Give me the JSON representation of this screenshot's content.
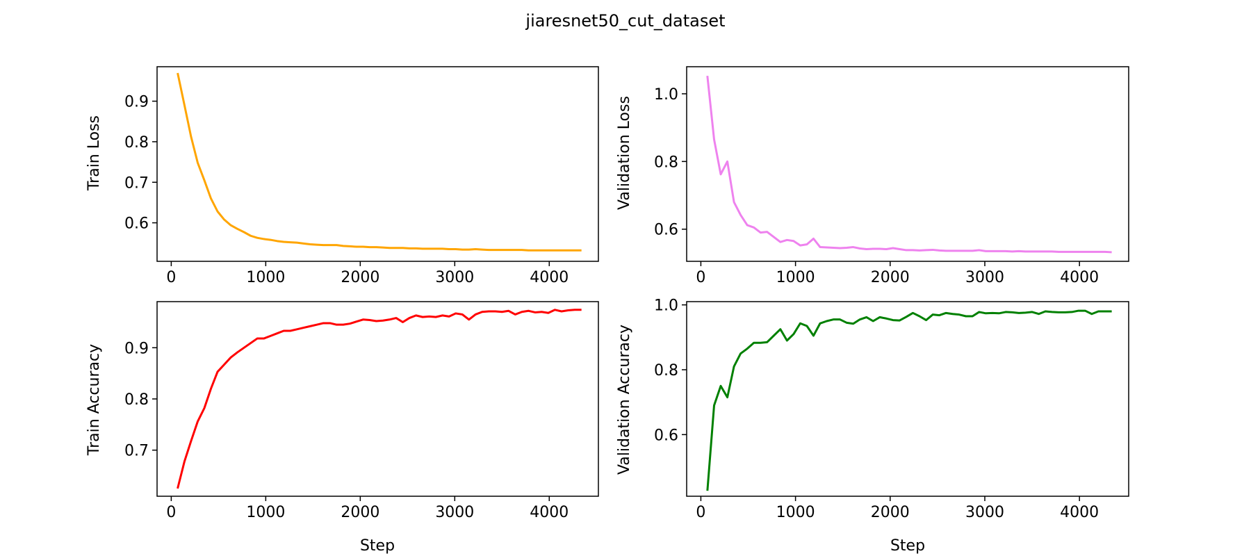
{
  "figure": {
    "title": "jiaresnet50_cut_dataset"
  },
  "chart_data": [
    {
      "type": "line",
      "id": "train-loss",
      "title": "",
      "xlabel": "",
      "ylabel": "Train Loss",
      "xlim": [
        -150,
        4520
      ],
      "ylim": [
        0.505,
        0.985
      ],
      "xticks": [
        0,
        1000,
        2000,
        3000,
        4000
      ],
      "yticks": [
        0.6,
        0.7,
        0.8,
        0.9
      ],
      "color": "#ffa500",
      "series": [
        {
          "x": [
            70,
            140,
            210,
            280,
            350,
            420,
            490,
            560,
            630,
            700,
            770,
            840,
            910,
            980,
            1050,
            1120,
            1190,
            1260,
            1330,
            1400,
            1470,
            1540,
            1610,
            1680,
            1750,
            1820,
            1890,
            1960,
            2030,
            2100,
            2170,
            2240,
            2310,
            2380,
            2450,
            2520,
            2590,
            2660,
            2730,
            2800,
            2870,
            2940,
            3010,
            3080,
            3150,
            3220,
            3290,
            3360,
            3430,
            3500,
            3570,
            3640,
            3710,
            3780,
            3850,
            3920,
            3990,
            4060,
            4130,
            4200,
            4270,
            4330
          ],
          "values": [
            0.967,
            0.89,
            0.812,
            0.748,
            0.705,
            0.66,
            0.628,
            0.608,
            0.594,
            0.585,
            0.577,
            0.568,
            0.563,
            0.56,
            0.558,
            0.555,
            0.553,
            0.552,
            0.551,
            0.549,
            0.547,
            0.546,
            0.545,
            0.545,
            0.545,
            0.543,
            0.542,
            0.541,
            0.541,
            0.54,
            0.54,
            0.539,
            0.538,
            0.538,
            0.538,
            0.537,
            0.537,
            0.536,
            0.536,
            0.536,
            0.536,
            0.535,
            0.535,
            0.534,
            0.534,
            0.535,
            0.534,
            0.533,
            0.533,
            0.533,
            0.533,
            0.533,
            0.533,
            0.532,
            0.532,
            0.532,
            0.532,
            0.532,
            0.532,
            0.532,
            0.532,
            0.532
          ]
        }
      ]
    },
    {
      "type": "line",
      "id": "validation-loss",
      "title": "",
      "xlabel": "",
      "ylabel": "Validation Loss",
      "xlim": [
        -150,
        4520
      ],
      "ylim": [
        0.505,
        1.08
      ],
      "xticks": [
        0,
        1000,
        2000,
        3000,
        4000
      ],
      "yticks": [
        0.6,
        0.8,
        1.0
      ],
      "color": "#ee82ee",
      "series": [
        {
          "x": [
            70,
            140,
            210,
            280,
            350,
            420,
            490,
            560,
            630,
            700,
            770,
            840,
            910,
            980,
            1050,
            1120,
            1190,
            1260,
            1330,
            1400,
            1470,
            1540,
            1610,
            1680,
            1750,
            1820,
            1890,
            1960,
            2030,
            2100,
            2170,
            2240,
            2310,
            2380,
            2450,
            2520,
            2590,
            2660,
            2730,
            2800,
            2870,
            2940,
            3010,
            3080,
            3150,
            3220,
            3290,
            3360,
            3430,
            3500,
            3570,
            3640,
            3710,
            3780,
            3850,
            3920,
            3990,
            4060,
            4130,
            4200,
            4270,
            4330
          ],
          "values": [
            1.05,
            0.865,
            0.762,
            0.8,
            0.68,
            0.642,
            0.612,
            0.605,
            0.59,
            0.592,
            0.577,
            0.562,
            0.568,
            0.565,
            0.552,
            0.555,
            0.572,
            0.547,
            0.546,
            0.545,
            0.544,
            0.545,
            0.547,
            0.543,
            0.541,
            0.542,
            0.542,
            0.541,
            0.544,
            0.541,
            0.538,
            0.538,
            0.537,
            0.538,
            0.539,
            0.537,
            0.536,
            0.536,
            0.536,
            0.536,
            0.536,
            0.538,
            0.535,
            0.535,
            0.535,
            0.535,
            0.534,
            0.535,
            0.534,
            0.534,
            0.534,
            0.534,
            0.534,
            0.533,
            0.533,
            0.533,
            0.533,
            0.533,
            0.533,
            0.533,
            0.533,
            0.532
          ]
        }
      ]
    },
    {
      "type": "line",
      "id": "train-accuracy",
      "title": "",
      "xlabel": "Step",
      "ylabel": "Train Accuracy",
      "xlim": [
        -150,
        4520
      ],
      "ylim": [
        0.61,
        0.99
      ],
      "xticks": [
        0,
        1000,
        2000,
        3000,
        4000
      ],
      "yticks": [
        0.7,
        0.8,
        0.9
      ],
      "color": "#ff0000",
      "series": [
        {
          "x": [
            70,
            140,
            210,
            280,
            350,
            420,
            490,
            560,
            630,
            700,
            770,
            840,
            910,
            980,
            1050,
            1120,
            1190,
            1260,
            1330,
            1400,
            1470,
            1540,
            1610,
            1680,
            1750,
            1820,
            1890,
            1960,
            2030,
            2100,
            2170,
            2240,
            2310,
            2380,
            2450,
            2520,
            2590,
            2660,
            2730,
            2800,
            2870,
            2940,
            3010,
            3080,
            3150,
            3220,
            3290,
            3360,
            3430,
            3500,
            3570,
            3640,
            3710,
            3780,
            3850,
            3920,
            3990,
            4060,
            4130,
            4200,
            4270,
            4330
          ],
          "values": [
            0.627,
            0.678,
            0.718,
            0.756,
            0.782,
            0.82,
            0.853,
            0.867,
            0.881,
            0.891,
            0.9,
            0.909,
            0.918,
            0.918,
            0.923,
            0.928,
            0.933,
            0.933,
            0.936,
            0.939,
            0.942,
            0.945,
            0.948,
            0.948,
            0.945,
            0.945,
            0.947,
            0.951,
            0.955,
            0.954,
            0.952,
            0.953,
            0.955,
            0.958,
            0.95,
            0.958,
            0.963,
            0.96,
            0.961,
            0.96,
            0.963,
            0.961,
            0.967,
            0.965,
            0.955,
            0.965,
            0.97,
            0.971,
            0.971,
            0.97,
            0.972,
            0.965,
            0.97,
            0.972,
            0.969,
            0.97,
            0.968,
            0.974,
            0.971,
            0.973,
            0.974,
            0.974
          ]
        }
      ]
    },
    {
      "type": "line",
      "id": "validation-accuracy",
      "title": "",
      "xlabel": "Step",
      "ylabel": "Validation Accuracy",
      "xlim": [
        -150,
        4520
      ],
      "ylim": [
        0.41,
        1.01
      ],
      "xticks": [
        0,
        1000,
        2000,
        3000,
        4000
      ],
      "yticks": [
        0.6,
        0.8,
        1.0
      ],
      "color": "#008000",
      "series": [
        {
          "x": [
            70,
            140,
            210,
            280,
            350,
            420,
            490,
            560,
            630,
            700,
            770,
            840,
            910,
            980,
            1050,
            1120,
            1190,
            1260,
            1330,
            1400,
            1470,
            1540,
            1610,
            1680,
            1750,
            1820,
            1890,
            1960,
            2030,
            2100,
            2170,
            2240,
            2310,
            2380,
            2450,
            2520,
            2590,
            2660,
            2730,
            2800,
            2870,
            2940,
            3010,
            3080,
            3150,
            3220,
            3290,
            3360,
            3430,
            3500,
            3570,
            3640,
            3710,
            3780,
            3850,
            3920,
            3990,
            4060,
            4130,
            4200,
            4270,
            4330
          ],
          "values": [
            0.43,
            0.69,
            0.75,
            0.715,
            0.81,
            0.85,
            0.865,
            0.883,
            0.883,
            0.885,
            0.905,
            0.925,
            0.89,
            0.91,
            0.943,
            0.935,
            0.905,
            0.943,
            0.95,
            0.955,
            0.955,
            0.945,
            0.942,
            0.955,
            0.962,
            0.95,
            0.962,
            0.958,
            0.953,
            0.952,
            0.963,
            0.975,
            0.965,
            0.953,
            0.97,
            0.968,
            0.975,
            0.972,
            0.97,
            0.965,
            0.965,
            0.978,
            0.974,
            0.975,
            0.974,
            0.978,
            0.977,
            0.975,
            0.976,
            0.978,
            0.972,
            0.98,
            0.978,
            0.977,
            0.977,
            0.978,
            0.982,
            0.982,
            0.972,
            0.98,
            0.98,
            0.98
          ]
        }
      ]
    }
  ]
}
